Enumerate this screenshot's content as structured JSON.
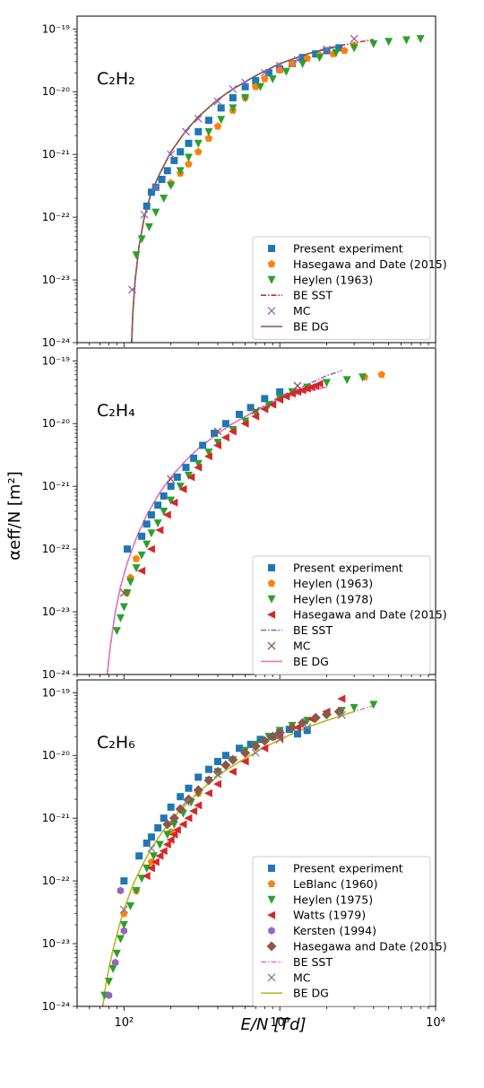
{
  "figure": {
    "ylabel": "αeff/N [m²]",
    "xlabel": "E/N [Td]"
  },
  "chart_data": [
    {
      "type": "scatter",
      "panel_label": "C₂H₂",
      "xscale": "log",
      "yscale": "log",
      "xlim": [
        50,
        10000
      ],
      "ylim": [
        1e-24,
        1.6e-19
      ],
      "xticks": [
        "10²",
        "10³",
        "10⁴"
      ],
      "xtick_labels_visible": false,
      "yticks": [
        "10⁻¹⁹",
        "10⁻²⁰",
        "10⁻²¹",
        "10⁻²²",
        "10⁻²³",
        "10⁻²⁴"
      ],
      "legend_position": "lower-right",
      "series": [
        {
          "name": "Present experiment",
          "marker": "square",
          "color": "#1f77b4",
          "x": [
            140,
            150,
            160,
            175,
            190,
            210,
            230,
            260,
            300,
            350,
            420,
            500,
            600,
            700,
            850,
            1000,
            1200,
            1400,
            1700,
            2000,
            2400
          ],
          "y": [
            1.5e-22,
            2.5e-22,
            3e-22,
            4e-22,
            5.5e-22,
            8e-22,
            1.1e-21,
            1.5e-21,
            2.3e-21,
            3.5e-21,
            5.5e-21,
            8e-21,
            1.2e-20,
            1.5e-20,
            2e-20,
            2.3e-20,
            2.8e-20,
            3.5e-20,
            4e-20,
            4.5e-20,
            5e-20
          ]
        },
        {
          "name": "Hasegawa and Date (2015)",
          "marker": "pentagon",
          "color": "#ff7f0e",
          "x": [
            200,
            230,
            260,
            300,
            350,
            400,
            500,
            600,
            700,
            800,
            1000,
            1200,
            1500,
            1800,
            2200,
            2600,
            3000
          ],
          "y": [
            3.5e-22,
            5e-22,
            7e-22,
            1.1e-21,
            1.8e-21,
            2.8e-21,
            5e-21,
            8e-21,
            1.2e-20,
            1.6e-20,
            2.2e-20,
            2.8e-20,
            3.4e-20,
            3.8e-20,
            4e-20,
            4.5e-20,
            5.5e-20
          ]
        },
        {
          "name": "Heylen (1963)",
          "marker": "triangle-down",
          "color": "#2ca02c",
          "x": [
            120,
            130,
            145,
            160,
            180,
            200,
            230,
            260,
            300,
            350,
            420,
            500,
            600,
            750,
            900,
            1100,
            1400,
            1800,
            2300,
            3000,
            4000,
            5000,
            6500,
            8000
          ],
          "y": [
            2.5e-23,
            4.5e-23,
            7e-23,
            1.2e-22,
            2e-22,
            3.2e-22,
            5.5e-22,
            9e-22,
            1.5e-21,
            2.3e-21,
            3.6e-21,
            5.5e-21,
            8e-21,
            1.2e-20,
            1.6e-20,
            2.1e-20,
            2.8e-20,
            3.5e-20,
            4.2e-20,
            5e-20,
            5.8e-20,
            6.3e-20,
            6.7e-20,
            7e-20
          ]
        },
        {
          "name": "BE SST",
          "marker": "dashdot",
          "color": "#d62728",
          "x": [
            112,
            114,
            118,
            125,
            135,
            150,
            170,
            200,
            250,
            300,
            400,
            500,
            700,
            1000,
            1500,
            2000,
            3000,
            4000
          ],
          "y": [
            1e-24,
            3e-24,
            1e-23,
            3.5e-23,
            1e-22,
            2.5e-22,
            5e-22,
            1.1e-21,
            2.4e-21,
            4e-21,
            7.5e-21,
            1.1e-20,
            1.8e-20,
            2.8e-20,
            4e-20,
            4.9e-20,
            6e-20,
            6.8e-20
          ]
        },
        {
          "name": "MC",
          "marker": "x",
          "color": "#9467bd",
          "x": [
            113,
            135,
            160,
            200,
            250,
            300,
            400,
            500,
            600,
            800,
            1000,
            1300,
            2000,
            3000
          ],
          "y": [
            7e-24,
            1.1e-22,
            3e-22,
            1e-21,
            2.3e-21,
            3.7e-21,
            7e-21,
            1.1e-20,
            1.4e-20,
            2e-20,
            2.6e-20,
            3.2e-20,
            4.7e-20,
            7e-20
          ]
        },
        {
          "name": "BE DG",
          "marker": "line",
          "color": "#8c564b",
          "x": [
            112,
            114,
            118,
            125,
            135,
            150,
            170,
            200,
            250,
            300,
            400,
            500,
            700,
            1000,
            1500,
            2000,
            2500
          ],
          "y": [
            1e-24,
            3e-24,
            1e-23,
            3.5e-23,
            1e-22,
            2.5e-22,
            5e-22,
            1.1e-21,
            2.4e-21,
            4e-21,
            7.5e-21,
            1.1e-20,
            1.8e-20,
            2.8e-20,
            4e-20,
            4.8e-20,
            5.4e-20
          ]
        }
      ]
    },
    {
      "type": "scatter",
      "panel_label": "C₂H₄",
      "xscale": "log",
      "yscale": "log",
      "xlim": [
        50,
        10000
      ],
      "ylim": [
        1e-24,
        1.6e-19
      ],
      "xticks": [
        "10²",
        "10³",
        "10⁴"
      ],
      "xtick_labels_visible": false,
      "yticks": [
        "10⁻¹⁹",
        "10⁻²⁰",
        "10⁻²¹",
        "10⁻²²",
        "10⁻²³",
        "10⁻²⁴"
      ],
      "legend_position": "lower-right",
      "series": [
        {
          "name": "Present experiment",
          "marker": "square",
          "color": "#1f77b4",
          "x": [
            105,
            130,
            140,
            150,
            165,
            180,
            200,
            220,
            250,
            280,
            320,
            380,
            450,
            550,
            650,
            800,
            1000
          ],
          "y": [
            1e-22,
            1.6e-22,
            2.5e-22,
            3.5e-22,
            5e-22,
            7e-22,
            1e-21,
            1.4e-21,
            2e-21,
            2.8e-21,
            4.5e-21,
            7e-21,
            1e-20,
            1.4e-20,
            1.8e-20,
            2.5e-20,
            3.2e-20
          ]
        },
        {
          "name": "Heylen (1963)",
          "marker": "pentagon",
          "color": "#ff7f0e",
          "x": [
            104,
            110,
            120,
            3500,
            4500
          ],
          "y": [
            2e-23,
            3.5e-23,
            7e-23,
            5.5e-20,
            6e-20
          ]
        },
        {
          "name": "Heylen (1978)",
          "marker": "triangle-down",
          "color": "#2ca02c",
          "x": [
            90,
            95,
            100,
            105,
            110,
            120,
            130,
            140,
            150,
            165,
            180,
            200,
            230,
            260,
            300,
            350,
            400,
            500,
            600,
            700,
            850,
            1000,
            1200,
            1500,
            2000,
            2700,
            3400
          ],
          "y": [
            5e-24,
            8e-24,
            1.2e-23,
            2e-23,
            3e-23,
            5e-23,
            8e-23,
            1.2e-22,
            1.8e-22,
            2.6e-22,
            4e-22,
            6e-22,
            1e-21,
            1.5e-21,
            2.3e-21,
            3.5e-21,
            5e-21,
            8e-21,
            1.1e-20,
            1.5e-20,
            2e-20,
            2.6e-20,
            3.2e-20,
            3.8e-20,
            4.5e-20,
            5e-20,
            5.5e-20
          ]
        },
        {
          "name": "Hasegawa and Date (2015)",
          "marker": "triangle-left",
          "color": "#d62728",
          "x": [
            130,
            150,
            170,
            190,
            210,
            240,
            270,
            300,
            350,
            400,
            450,
            500,
            600,
            700,
            800,
            900,
            1000,
            1100,
            1200,
            1300,
            1400,
            1500,
            1600,
            1700,
            1800
          ],
          "y": [
            4.5e-23,
            1e-22,
            2e-22,
            3.5e-22,
            5.5e-22,
            9e-22,
            1.4e-21,
            2e-21,
            3e-21,
            4.5e-21,
            6e-21,
            7.5e-21,
            1e-20,
            1.3e-20,
            1.7e-20,
            2e-20,
            2.4e-20,
            2.7e-20,
            3e-20,
            3.2e-20,
            3.4e-20,
            3.6e-20,
            3.8e-20,
            4e-20,
            4.3e-20
          ]
        },
        {
          "name": "BE SST",
          "marker": "dashdot",
          "color": "#9467bd",
          "x": [
            78,
            82,
            88,
            95,
            105,
            120,
            140,
            170,
            200,
            250,
            300,
            400,
            500,
            700,
            1000,
            1500,
            2000,
            2500
          ],
          "y": [
            1e-24,
            3e-24,
            1e-23,
            2.5e-23,
            6e-23,
            1.5e-22,
            3.5e-22,
            8e-22,
            1.4e-21,
            2.6e-21,
            4e-21,
            7e-21,
            1e-20,
            1.6e-20,
            2.7e-20,
            4.2e-20,
            5.8e-20,
            7e-20
          ]
        },
        {
          "name": "MC",
          "marker": "x",
          "color": "#8c564b",
          "x": [
            100,
            200,
            400,
            700,
            1300
          ],
          "y": [
            2e-23,
            1.3e-21,
            7.5e-21,
            1.6e-20,
            4e-20
          ]
        },
        {
          "name": "BE DG",
          "marker": "line",
          "color": "#e377c2",
          "x": [
            78,
            82,
            88,
            95,
            105,
            120,
            140,
            170,
            200,
            250,
            300,
            400,
            500,
            700,
            1000,
            1500,
            2000
          ],
          "y": [
            1e-24,
            3e-24,
            1e-23,
            2.5e-23,
            6e-23,
            1.5e-22,
            3.5e-22,
            8e-22,
            1.4e-21,
            2.6e-21,
            4e-21,
            7e-21,
            1e-20,
            1.6e-20,
            2.5e-20,
            3.3e-20,
            3.8e-20
          ]
        }
      ]
    },
    {
      "type": "scatter",
      "panel_label": "C₂H₆",
      "xscale": "log",
      "yscale": "log",
      "xlim": [
        50,
        10000
      ],
      "ylim": [
        1e-24,
        1.6e-19
      ],
      "xticks": [
        "10²",
        "10³",
        "10⁴"
      ],
      "xtick_labels_visible": true,
      "yticks": [
        "10⁻¹⁹",
        "10⁻²⁰",
        "10⁻²¹",
        "10⁻²²",
        "10⁻²³",
        "10⁻²⁴"
      ],
      "legend_position": "lower-right",
      "series": [
        {
          "name": "Present experiment",
          "marker": "square",
          "color": "#1f77b4",
          "x": [
            100,
            125,
            140,
            150,
            165,
            180,
            200,
            230,
            260,
            300,
            350,
            400,
            450,
            550,
            650,
            750,
            900,
            1000,
            1150,
            1300,
            1500
          ],
          "y": [
            1e-22,
            2.5e-22,
            4e-22,
            5e-22,
            7e-22,
            1e-21,
            1.5e-21,
            2.2e-21,
            3e-21,
            4.5e-21,
            6e-21,
            8e-21,
            1e-20,
            1.3e-20,
            1.5e-20,
            1.8e-20,
            2e-20,
            2.3e-20,
            2.6e-20,
            2.2e-20,
            2.5e-20
          ]
        },
        {
          "name": "LeBlanc (1960)",
          "marker": "pentagon",
          "color": "#ff7f0e",
          "x": [
            100,
            120,
            150,
            200,
            300
          ],
          "y": [
            3e-23,
            7e-23,
            2e-22,
            6e-22,
            2.5e-21
          ]
        },
        {
          "name": "Heylen (1975)",
          "marker": "triangle-down",
          "color": "#2ca02c",
          "x": [
            75,
            80,
            85,
            90,
            95,
            100,
            110,
            120,
            130,
            140,
            155,
            170,
            190,
            210,
            240,
            270,
            300,
            350,
            400,
            500,
            600,
            700,
            850,
            1000,
            1200,
            1500,
            2000,
            2500,
            3000,
            4000
          ],
          "y": [
            1.5e-24,
            2.5e-24,
            4e-24,
            7e-24,
            1.2e-23,
            2e-23,
            4e-23,
            7e-23,
            1.1e-22,
            1.6e-22,
            2.5e-22,
            3.8e-22,
            5.5e-22,
            8e-22,
            1.2e-21,
            1.8e-21,
            2.5e-21,
            4e-21,
            5.5e-21,
            8.5e-21,
            1.2e-20,
            1.5e-20,
            2e-20,
            2.5e-20,
            3e-20,
            3.6e-20,
            4.5e-20,
            5.2e-20,
            5.8e-20,
            6.5e-20
          ]
        },
        {
          "name": "Watts (1979)",
          "marker": "triangle-left",
          "color": "#d62728",
          "x": [
            140,
            150,
            160,
            170,
            180,
            190,
            200,
            210,
            220,
            240,
            260,
            280,
            300,
            350,
            400,
            500,
            600,
            800,
            1000,
            1300,
            1600,
            2000,
            2500
          ],
          "y": [
            1.2e-22,
            1.6e-22,
            2e-22,
            2.5e-22,
            3e-22,
            3.8e-22,
            4.5e-22,
            5.5e-22,
            6.5e-22,
            8e-22,
            1e-21,
            1.3e-21,
            1.6e-21,
            2.5e-21,
            3.5e-21,
            5.5e-21,
            8e-21,
            1.3e-20,
            1.9e-20,
            2.8e-20,
            3.8e-20,
            5e-20,
            8e-20
          ]
        },
        {
          "name": "Kersten (1994)",
          "marker": "hexagon",
          "color": "#9467bd",
          "x": [
            80,
            88,
            95,
            100
          ],
          "y": [
            1.5e-24,
            5e-24,
            7e-23,
            1.6e-23
          ]
        },
        {
          "name": "Hasegawa and Date (2015)",
          "marker": "diamond",
          "color": "#8c564b",
          "x": [
            190,
            210,
            230,
            260,
            300,
            350,
            400,
            450,
            500,
            600,
            700,
            800,
            900,
            1000,
            1200,
            1400,
            1700,
            2000,
            2400
          ],
          "y": [
            8e-22,
            1e-21,
            1.4e-21,
            2e-21,
            2.8e-21,
            4e-21,
            5.5e-21,
            7e-21,
            8.5e-21,
            1.1e-20,
            1.4e-20,
            1.7e-20,
            2e-20,
            2.3e-20,
            2.8e-20,
            3.3e-20,
            4e-20,
            4.5e-20,
            5e-20
          ]
        },
        {
          "name": "BE SST",
          "marker": "dashdot",
          "color": "#e377c2",
          "x": [
            73,
            76,
            80,
            85,
            92,
            100,
            115,
            130,
            150,
            180,
            220,
            280,
            350,
            450,
            600,
            800,
            1100,
            1500,
            2000,
            3000,
            4000
          ],
          "y": [
            1e-24,
            2e-24,
            4e-24,
            8e-24,
            1.7e-23,
            3.5e-23,
            9e-23,
            1.7e-22,
            3.3e-22,
            6.5e-22,
            1.2e-21,
            2.2e-21,
            3.6e-21,
            5.8e-21,
            9e-21,
            1.35e-20,
            2e-20,
            2.8e-20,
            3.6e-20,
            5e-20,
            6.2e-20
          ]
        },
        {
          "name": "MC",
          "marker": "x",
          "color": "#7f7f7f",
          "x": [
            100,
            150,
            250,
            400,
            700,
            1000,
            1500,
            2500
          ],
          "y": [
            3.5e-23,
            3.3e-22,
            1.8e-21,
            5e-21,
            1.1e-20,
            1.8e-20,
            2.8e-20,
            4.4e-20
          ]
        },
        {
          "name": "BE DG",
          "marker": "line",
          "color": "#bcbd22",
          "x": [
            73,
            76,
            80,
            85,
            92,
            100,
            115,
            130,
            150,
            180,
            220,
            280,
            350,
            450,
            600,
            800,
            1100,
            1500,
            2000,
            3000
          ],
          "y": [
            1e-24,
            2e-24,
            4e-24,
            8e-24,
            1.7e-23,
            3.5e-23,
            9e-23,
            1.7e-22,
            3.3e-22,
            6.5e-22,
            1.2e-21,
            2.2e-21,
            3.6e-21,
            5.8e-21,
            9e-21,
            1.35e-20,
            2e-20,
            2.8e-20,
            3.6e-20,
            5e-20
          ]
        }
      ]
    }
  ]
}
